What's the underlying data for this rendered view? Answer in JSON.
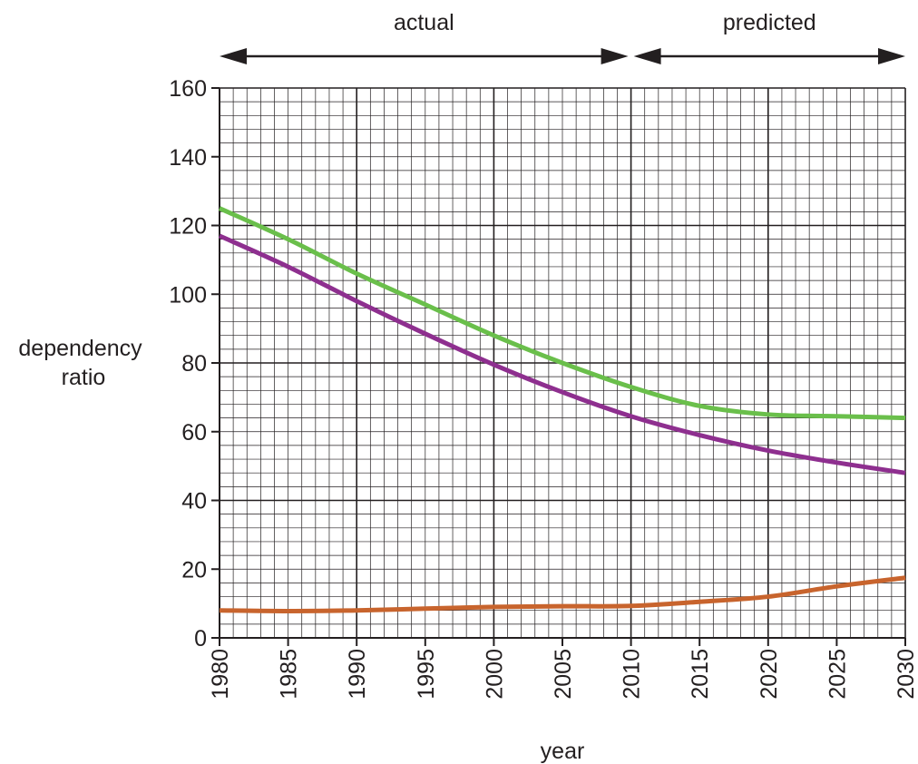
{
  "chart_data": {
    "type": "line",
    "title": "",
    "xlabel": "year",
    "ylabel": [
      "dependency",
      "ratio"
    ],
    "xlim": [
      1980,
      2030
    ],
    "ylim": [
      0,
      160
    ],
    "x_ticks": [
      1980,
      1985,
      1990,
      1995,
      2000,
      2005,
      2010,
      2015,
      2020,
      2025,
      2030
    ],
    "y_ticks": [
      0,
      20,
      40,
      60,
      80,
      100,
      120,
      140,
      160
    ],
    "grid": {
      "major_x": 10,
      "major_y": 40,
      "minor_x": 1,
      "minor_y": 4
    },
    "periods": [
      {
        "label": "actual",
        "from": 1980,
        "to": 2010
      },
      {
        "label": "predicted",
        "from": 2010,
        "to": 2030
      }
    ],
    "series": [
      {
        "color": "#6abf4b",
        "x": [
          1980,
          1985,
          1990,
          1995,
          2000,
          2005,
          2010,
          2015,
          2020,
          2025,
          2030
        ],
        "y": [
          125,
          116,
          106,
          97,
          88,
          80,
          73,
          67.5,
          65,
          64.5,
          64
        ]
      },
      {
        "color": "#8e2f8f",
        "x": [
          1980,
          1985,
          1990,
          1995,
          2000,
          2005,
          2010,
          2015,
          2020,
          2025,
          2030
        ],
        "y": [
          117,
          108,
          98,
          88.5,
          79.5,
          71.5,
          64.5,
          59,
          54.5,
          51,
          48
        ]
      },
      {
        "color": "#c8642d",
        "x": [
          1980,
          1985,
          1990,
          1995,
          2000,
          2005,
          2010,
          2015,
          2020,
          2025,
          2030
        ],
        "y": [
          8,
          7.8,
          8,
          8.5,
          9,
          9.2,
          9.3,
          10.5,
          12,
          15,
          17.5
        ]
      }
    ]
  }
}
